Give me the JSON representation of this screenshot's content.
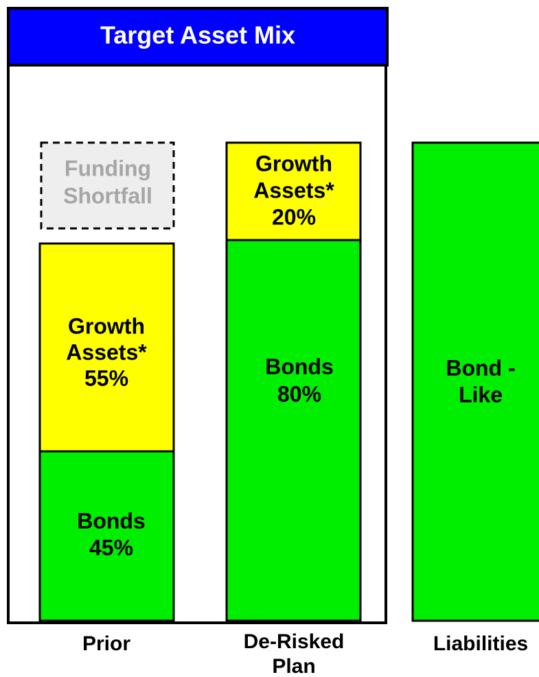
{
  "title": "Target Asset Mix",
  "columns": [
    {
      "label": [
        "Prior"
      ],
      "segments": [
        {
          "lines": [
            "Funding",
            "Shortfall"
          ]
        },
        {
          "lines": [
            "Growth",
            "Assets*",
            "55%"
          ]
        },
        {
          "lines": [
            "Bonds",
            "45%"
          ]
        }
      ]
    },
    {
      "label": [
        "De-Risked",
        "Plan"
      ],
      "segments": [
        {
          "lines": [
            "Growth",
            "Assets*",
            "20%"
          ]
        },
        {
          "lines": [
            "Bonds",
            "80%"
          ]
        }
      ]
    },
    {
      "label": [
        "Liabilities"
      ],
      "segments": [
        {
          "lines": [
            "Bond -",
            "Like"
          ]
        }
      ]
    }
  ]
}
